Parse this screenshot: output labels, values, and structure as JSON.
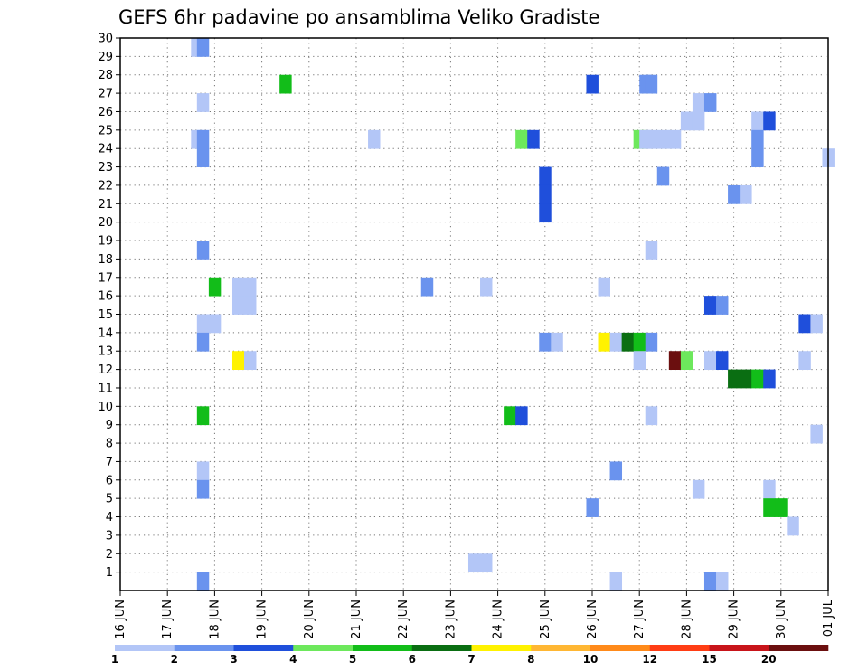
{
  "chart_data": {
    "type": "heatmap",
    "title": "GEFS 6hr padavine po ansamblima Veliko Gradiste",
    "xlabel": "",
    "ylabel": "",
    "x_ticks": [
      "16 JUN",
      "17 JUN",
      "18 JUN",
      "19 JUN",
      "20 JUN",
      "21 JUN",
      "22 JUN",
      "23 JUN",
      "24 JUN",
      "25 JUN",
      "26 JUN",
      "27 JUN",
      "28 JUN",
      "29 JUN",
      "30 JUN",
      "01 JUL"
    ],
    "x_unit": "days since 16 JUN (6-hour steps)",
    "xlim": [
      0,
      15
    ],
    "y_ticks": [
      1,
      2,
      3,
      4,
      5,
      6,
      7,
      8,
      9,
      10,
      11,
      12,
      13,
      14,
      15,
      16,
      17,
      18,
      19,
      20,
      21,
      22,
      23,
      24,
      25,
      26,
      27,
      28,
      29,
      30
    ],
    "ylim": [
      0,
      30
    ],
    "grid": true,
    "color_levels": {
      "labels": [
        "1",
        "2",
        "3",
        "4",
        "5",
        "6",
        "7",
        "8",
        "10",
        "12",
        "15",
        "20"
      ],
      "colors": [
        "#b3c6f7",
        "#6a93ee",
        "#1f4fdb",
        "#6de85c",
        "#12bd19",
        "#0a6e12",
        "#fff200",
        "#ffb733",
        "#ff8a1a",
        "#ff3d14",
        "#c8141a",
        "#6b0f0f"
      ]
    },
    "cells": [
      {
        "member": 30,
        "x": 1.5,
        "level": 1
      },
      {
        "member": 30,
        "x": 1.625,
        "level": 2
      },
      {
        "member": 28,
        "x": 3.375,
        "level": 5
      },
      {
        "member": 28,
        "x": 9.875,
        "level": 3
      },
      {
        "member": 28,
        "x": 11.0,
        "level": 2
      },
      {
        "member": 28,
        "x": 11.125,
        "level": 2
      },
      {
        "member": 27,
        "x": 1.625,
        "level": 1
      },
      {
        "member": 27,
        "x": 12.125,
        "level": 1
      },
      {
        "member": 27,
        "x": 12.375,
        "level": 2
      },
      {
        "member": 26,
        "x": 11.875,
        "level": 1
      },
      {
        "member": 26,
        "x": 12.125,
        "level": 1
      },
      {
        "member": 26,
        "x": 13.375,
        "level": 1
      },
      {
        "member": 26,
        "x": 13.625,
        "level": 3
      },
      {
        "member": 25,
        "x": 1.5,
        "level": 1
      },
      {
        "member": 25,
        "x": 1.625,
        "level": 2
      },
      {
        "member": 25,
        "x": 5.25,
        "level": 1
      },
      {
        "member": 25,
        "x": 8.375,
        "level": 4
      },
      {
        "member": 25,
        "x": 8.625,
        "level": 3
      },
      {
        "member": 25,
        "x": 10.875,
        "level": 4
      },
      {
        "member": 25,
        "x": 11.0,
        "level": 1
      },
      {
        "member": 25,
        "x": 11.125,
        "level": 1
      },
      {
        "member": 25,
        "x": 11.375,
        "level": 1
      },
      {
        "member": 25,
        "x": 11.625,
        "level": 1
      },
      {
        "member": 25,
        "x": 13.375,
        "level": 2
      },
      {
        "member": 24,
        "x": 1.625,
        "level": 2
      },
      {
        "member": 24,
        "x": 13.375,
        "level": 2
      },
      {
        "member": 24,
        "x": 14.875,
        "level": 1
      },
      {
        "member": 23,
        "x": 8.875,
        "level": 3
      },
      {
        "member": 23,
        "x": 11.375,
        "level": 2
      },
      {
        "member": 22,
        "x": 8.875,
        "level": 3
      },
      {
        "member": 22,
        "x": 12.875,
        "level": 2
      },
      {
        "member": 22,
        "x": 13.125,
        "level": 1
      },
      {
        "member": 21,
        "x": 8.875,
        "level": 3
      },
      {
        "member": 19,
        "x": 1.625,
        "level": 2
      },
      {
        "member": 19,
        "x": 11.125,
        "level": 1
      },
      {
        "member": 17,
        "x": 1.875,
        "level": 5
      },
      {
        "member": 17,
        "x": 2.375,
        "level": 1
      },
      {
        "member": 17,
        "x": 2.625,
        "level": 1
      },
      {
        "member": 17,
        "x": 6.375,
        "level": 2
      },
      {
        "member": 17,
        "x": 7.625,
        "level": 1
      },
      {
        "member": 17,
        "x": 10.125,
        "level": 1
      },
      {
        "member": 16,
        "x": 2.375,
        "level": 1
      },
      {
        "member": 16,
        "x": 2.625,
        "level": 1
      },
      {
        "member": 16,
        "x": 12.375,
        "level": 3
      },
      {
        "member": 16,
        "x": 12.625,
        "level": 2
      },
      {
        "member": 15,
        "x": 1.625,
        "level": 1
      },
      {
        "member": 15,
        "x": 1.875,
        "level": 1
      },
      {
        "member": 15,
        "x": 14.375,
        "level": 3
      },
      {
        "member": 15,
        "x": 14.625,
        "level": 1
      },
      {
        "member": 14,
        "x": 1.625,
        "level": 2
      },
      {
        "member": 14,
        "x": 8.875,
        "level": 2
      },
      {
        "member": 14,
        "x": 9.125,
        "level": 1
      },
      {
        "member": 14,
        "x": 10.125,
        "level": 7
      },
      {
        "member": 14,
        "x": 10.375,
        "level": 1
      },
      {
        "member": 14,
        "x": 10.625,
        "level": 6
      },
      {
        "member": 14,
        "x": 10.875,
        "level": 5
      },
      {
        "member": 14,
        "x": 11.125,
        "level": 2
      },
      {
        "member": 13,
        "x": 2.375,
        "level": 7
      },
      {
        "member": 13,
        "x": 2.625,
        "level": 1
      },
      {
        "member": 13,
        "x": 10.875,
        "level": 1
      },
      {
        "member": 13,
        "x": 11.625,
        "level": 12
      },
      {
        "member": 13,
        "x": 11.875,
        "level": 4
      },
      {
        "member": 13,
        "x": 12.375,
        "level": 1
      },
      {
        "member": 13,
        "x": 12.625,
        "level": 3
      },
      {
        "member": 13,
        "x": 14.375,
        "level": 1
      },
      {
        "member": 12,
        "x": 12.875,
        "level": 6
      },
      {
        "member": 12,
        "x": 13.125,
        "level": 6
      },
      {
        "member": 12,
        "x": 13.375,
        "level": 5
      },
      {
        "member": 12,
        "x": 13.625,
        "level": 3
      },
      {
        "member": 10,
        "x": 1.625,
        "level": 5
      },
      {
        "member": 10,
        "x": 8.125,
        "level": 5
      },
      {
        "member": 10,
        "x": 8.375,
        "level": 3
      },
      {
        "member": 10,
        "x": 11.125,
        "level": 1
      },
      {
        "member": 9,
        "x": 14.625,
        "level": 1
      },
      {
        "member": 7,
        "x": 1.625,
        "level": 1
      },
      {
        "member": 7,
        "x": 10.375,
        "level": 2
      },
      {
        "member": 6,
        "x": 1.625,
        "level": 2
      },
      {
        "member": 6,
        "x": 12.125,
        "level": 1
      },
      {
        "member": 6,
        "x": 13.625,
        "level": 1
      },
      {
        "member": 5,
        "x": 9.875,
        "level": 2
      },
      {
        "member": 5,
        "x": 13.625,
        "level": 5
      },
      {
        "member": 5,
        "x": 13.875,
        "level": 5
      },
      {
        "member": 4,
        "x": 14.125,
        "level": 1
      },
      {
        "member": 2,
        "x": 7.375,
        "level": 1
      },
      {
        "member": 2,
        "x": 7.625,
        "level": 1
      },
      {
        "member": 1,
        "x": 1.625,
        "level": 2
      },
      {
        "member": 1,
        "x": 10.375,
        "level": 1
      },
      {
        "member": 1,
        "x": 12.375,
        "level": 2
      },
      {
        "member": 1,
        "x": 12.625,
        "level": 1
      }
    ]
  }
}
